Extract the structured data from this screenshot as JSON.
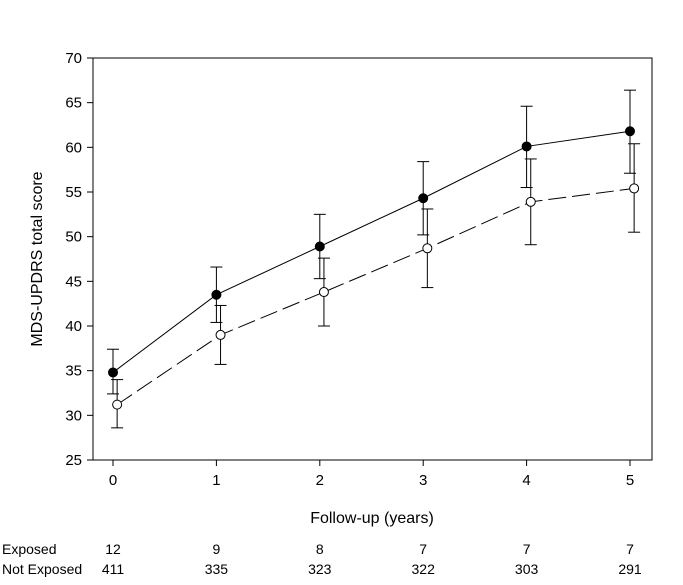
{
  "chart_data": {
    "type": "line",
    "xlabel": "Follow-up (years)",
    "ylabel": "MDS-UPDRS total score",
    "xlim": [
      -0.2,
      5.2
    ],
    "ylim": [
      25,
      70
    ],
    "x_ticks": [
      "0",
      "1",
      "2",
      "3",
      "4",
      "5"
    ],
    "y_ticks": [
      "25",
      "30",
      "35",
      "40",
      "45",
      "50",
      "55",
      "60",
      "65",
      "70"
    ],
    "grid": false,
    "series": [
      {
        "key": "exposed",
        "x": [
          0,
          1,
          2,
          3,
          4,
          5
        ],
        "values": [
          34.8,
          43.5,
          48.9,
          54.3,
          60.1,
          61.8
        ],
        "lower": [
          32.4,
          40.4,
          45.3,
          50.2,
          55.5,
          57.1
        ],
        "upper": [
          37.4,
          46.6,
          52.5,
          58.4,
          64.6,
          66.4
        ],
        "line_style": "solid",
        "marker": "filled-circle",
        "color": "#000000"
      },
      {
        "key": "not-exposed",
        "x": [
          0.04,
          1.04,
          2.04,
          3.04,
          4.04,
          5.04
        ],
        "values": [
          31.2,
          39.0,
          43.8,
          48.7,
          53.9,
          55.4
        ],
        "lower": [
          28.6,
          35.7,
          40.0,
          44.3,
          49.1,
          50.5
        ],
        "upper": [
          34.0,
          42.3,
          47.6,
          53.1,
          58.7,
          60.4
        ],
        "line_style": "dashed",
        "marker": "open-circle",
        "color": "#000000"
      }
    ]
  },
  "risk_table": {
    "rows": [
      {
        "label": "Exposed",
        "counts": [
          "12",
          "9",
          "8",
          "7",
          "7",
          "7"
        ]
      },
      {
        "label": "Not Exposed",
        "counts": [
          "411",
          "335",
          "323",
          "322",
          "303",
          "291"
        ]
      }
    ]
  }
}
